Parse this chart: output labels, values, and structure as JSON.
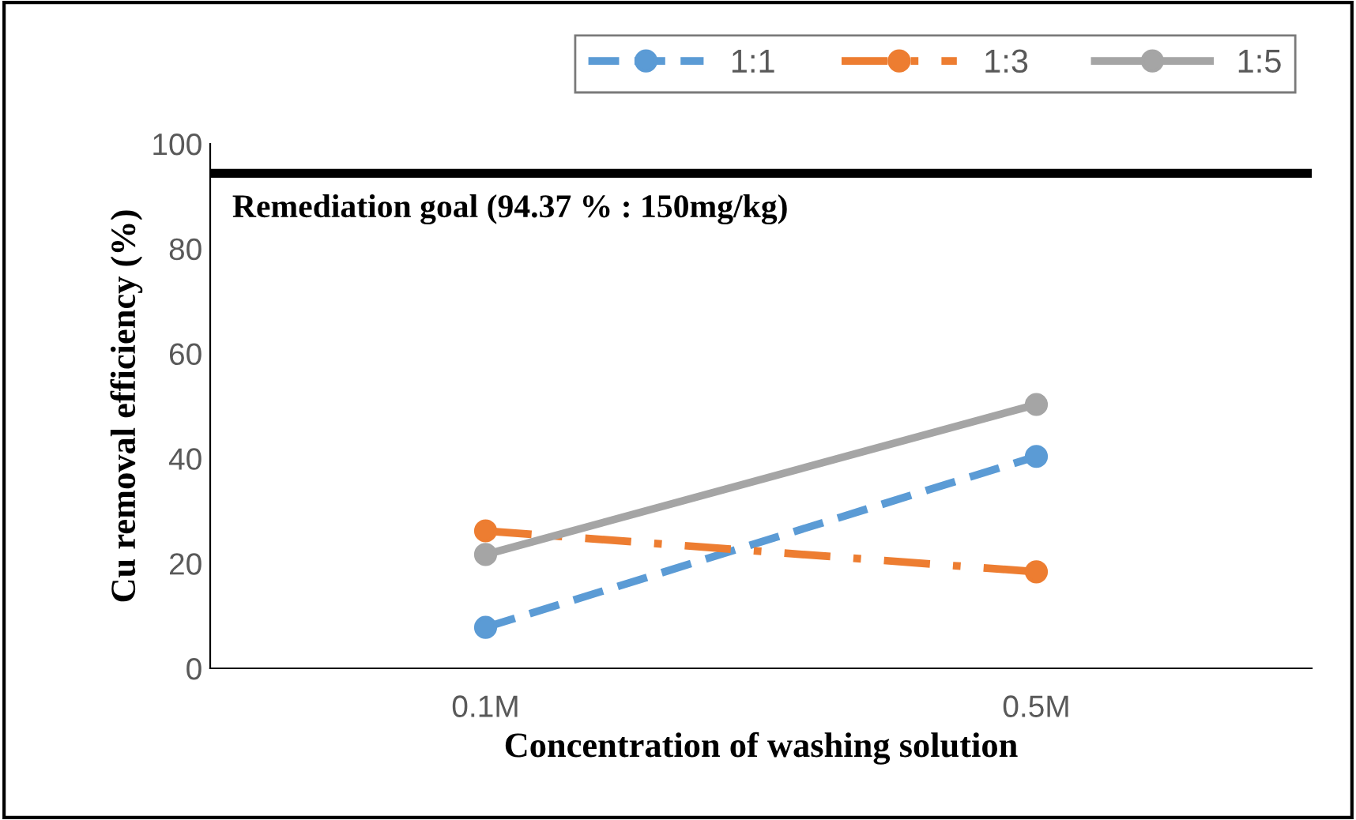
{
  "chart_data": {
    "type": "line",
    "xlabel": "Concentration of washing solution",
    "ylabel": "Cu removal efficiency (%)",
    "categories": [
      "0.1M",
      "0.5M"
    ],
    "series": [
      {
        "name": "1:1",
        "color": "#5b9bd5",
        "values": [
          7.8,
          40.4
        ],
        "line_style": "dashed",
        "marker": "circle"
      },
      {
        "name": "1:3",
        "color": "#ed7d31",
        "values": [
          26.2,
          18.4
        ],
        "line_style": "dashdot",
        "marker": "circle"
      },
      {
        "name": "1:5",
        "color": "#a5a5a5",
        "values": [
          21.7,
          50.3
        ],
        "line_style": "solid",
        "marker": "circle"
      }
    ],
    "ylim": [
      0,
      100
    ],
    "yticks": [
      0,
      20,
      40,
      60,
      80,
      100
    ],
    "grid": false,
    "legend": "top right",
    "ref_lines": [
      {
        "axis": "y",
        "value": 94.37,
        "label": "Remediation goal (94.37 % : 150mg/kg)",
        "color": "#000000",
        "line_style": "solid"
      }
    ]
  }
}
